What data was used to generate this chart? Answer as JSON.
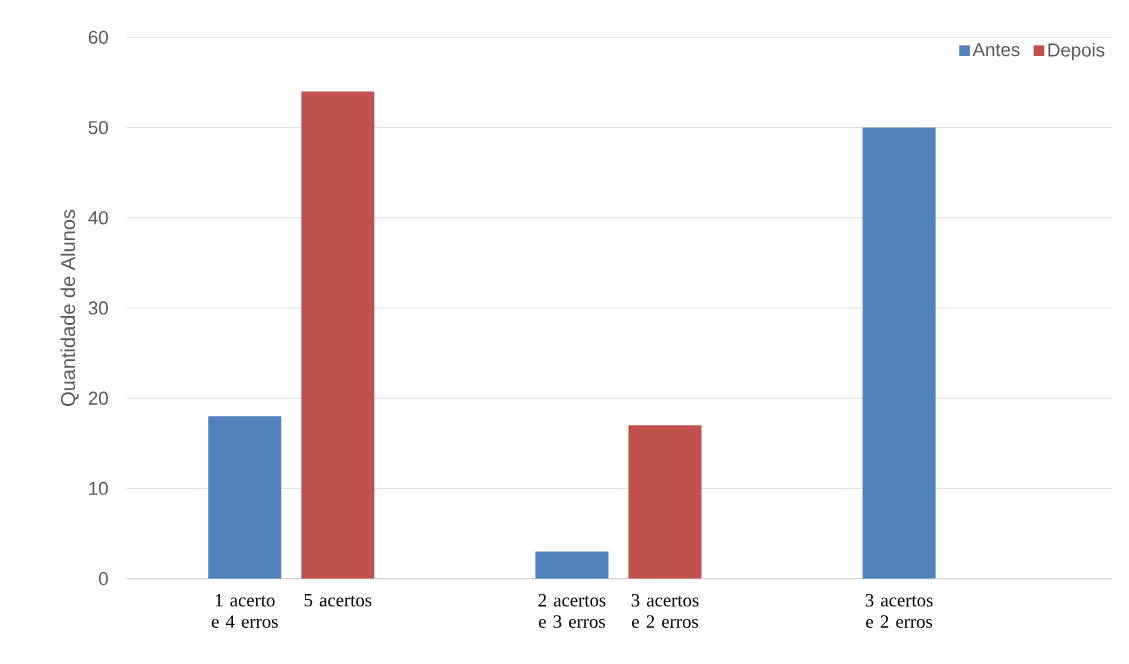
{
  "chart_data": {
    "type": "bar",
    "ylabel": "Quantidade de Alunos",
    "categories": [
      "1 acerto e 4 erros",
      "5 acertos",
      "2 acertos e 3 erros",
      "3 acertos e 2 erros",
      "3 acertos e 2 erros",
      null
    ],
    "series": [
      {
        "name": "Antes",
        "color": "#4f81bd",
        "values": [
          18,
          null,
          3,
          null,
          50,
          null
        ]
      },
      {
        "name": "Depois",
        "color": "#c0504d",
        "values": [
          null,
          54,
          null,
          17,
          null,
          null
        ]
      }
    ],
    "ylim": [
      0,
      60
    ],
    "yticks": [
      0,
      10,
      20,
      30,
      40,
      50,
      60
    ],
    "grid": "y",
    "legend": "top right"
  }
}
